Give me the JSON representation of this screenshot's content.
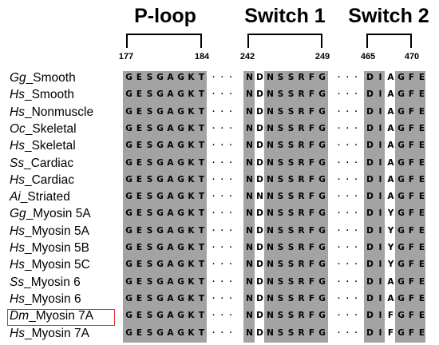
{
  "regions": [
    {
      "title": "P-loop",
      "start_pos": "177",
      "end_pos": "184"
    },
    {
      "title": "Switch 1",
      "start_pos": "242",
      "end_pos": "249"
    },
    {
      "title": "Switch 2",
      "start_pos": "465",
      "end_pos": "470"
    }
  ],
  "gap_symbol": "· · ·",
  "highlighted_species": "Dm_Myosin 7A",
  "colors": {
    "shaded": "#a3a3a3",
    "highlight_border": "#e03030"
  },
  "rows": [
    {
      "genus": "Gg",
      "name": "_Smooth",
      "ploop": "GESGAGKT",
      "switch1": "NDNSSRFG",
      "switch2": "DIAGFE"
    },
    {
      "genus": "Hs",
      "name": "_Smooth",
      "ploop": "GESGAGKT",
      "switch1": "NDNSSRFG",
      "switch2": "DIAGFE"
    },
    {
      "genus": "Hs",
      "name": "_Nonmuscle",
      "ploop": "GESGAGKT",
      "switch1": "NDNSSRFG",
      "switch2": "DIAGFE"
    },
    {
      "genus": "Oc",
      "name": "_Skeletal",
      "ploop": "GESGAGKT",
      "switch1": "NDNSSRFG",
      "switch2": "DIAGFE"
    },
    {
      "genus": "Hs",
      "name": "_Skeletal",
      "ploop": "GESGAGKT",
      "switch1": "NDNSSRFG",
      "switch2": "DIAGFE"
    },
    {
      "genus": "Ss",
      "name": "_Cardiac",
      "ploop": "GESGAGKT",
      "switch1": "NDNSSRFG",
      "switch2": "DIAGFE"
    },
    {
      "genus": "Hs",
      "name": "_Cardiac",
      "ploop": "GESGAGKT",
      "switch1": "NDNSSRFG",
      "switch2": "DIAGFE"
    },
    {
      "genus": "Ai",
      "name": "_Striated",
      "ploop": "GESGAGKT",
      "switch1": "NNNSSRFG",
      "switch2": "DIAGFE"
    },
    {
      "genus": "Gg",
      "name": "_Myosin 5A",
      "ploop": "GESGAGKT",
      "switch1": "NDNSSRFG",
      "switch2": "DIYGFE"
    },
    {
      "genus": "Hs",
      "name": "_Myosin 5A",
      "ploop": "GESGAGKT",
      "switch1": "NDNSSRFG",
      "switch2": "DIYGFE"
    },
    {
      "genus": "Hs",
      "name": "_Myosin 5B",
      "ploop": "GESGAGKT",
      "switch1": "NDNSSRFG",
      "switch2": "DIYGFE"
    },
    {
      "genus": "Hs",
      "name": "_Myosin 5C",
      "ploop": "GESGAGKT",
      "switch1": "NDNSSRFG",
      "switch2": "DIYGFE"
    },
    {
      "genus": "Ss",
      "name": "_Myosin 6",
      "ploop": "GESGAGKT",
      "switch1": "NDNSSRFG",
      "switch2": "DIAGFE"
    },
    {
      "genus": "Hs",
      "name": "_Myosin 6",
      "ploop": "GESGAGKT",
      "switch1": "NDNSSRFG",
      "switch2": "DIAGFE"
    },
    {
      "genus": "Dm",
      "name": "_Myosin 7A",
      "ploop": "GESGAGKT",
      "switch1": "NDNSSRFG",
      "switch2": "DIFGFE"
    },
    {
      "genus": "Hs",
      "name": "_Myosin 7A",
      "ploop": "GESGAGKT",
      "switch1": "NDNSSRFG",
      "switch2": "DIFGFE"
    }
  ]
}
